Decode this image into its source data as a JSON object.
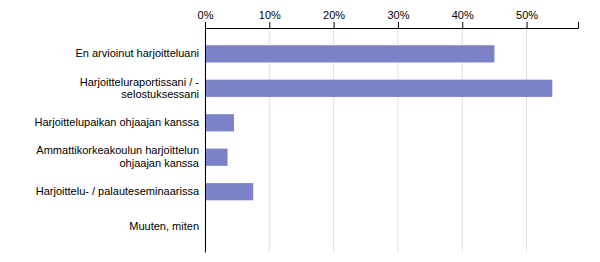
{
  "chart_data": {
    "type": "bar",
    "orientation": "horizontal",
    "categories": [
      "Muuten, miten",
      "Harjoittelu- / palauteseminaarissa",
      "Ammattikorkeakoulun harjoittelun\nohjaajan kanssa",
      "Harjoittelupaikan ohjaajan kanssa",
      "Harjoitteluraportissani / -\nselostuksessani",
      "En arvioinut harjoitteluani"
    ],
    "values": [
      0,
      7.5,
      3.5,
      4.5,
      54,
      45
    ],
    "color": "#7b82c8",
    "xlim": [
      0,
      58
    ],
    "xticks": [
      {
        "value": 0,
        "label": "0%"
      },
      {
        "value": 10,
        "label": "10%"
      },
      {
        "value": 20,
        "label": "20%"
      },
      {
        "value": 30,
        "label": "30%"
      },
      {
        "value": 40,
        "label": "40%"
      },
      {
        "value": 50,
        "label": "50%"
      }
    ],
    "grid": true
  }
}
